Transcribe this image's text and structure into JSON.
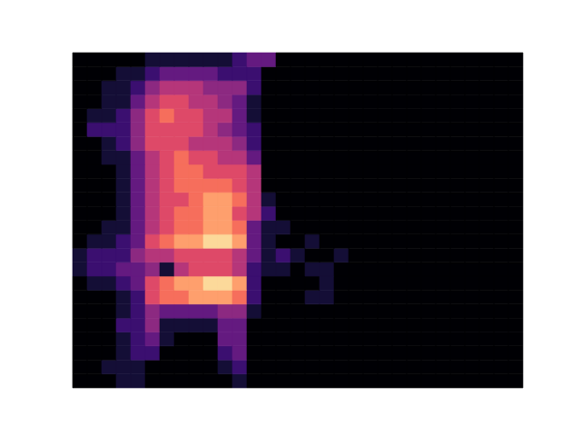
{
  "chart_data": {
    "type": "heatmap",
    "color": "magma",
    "tick_labels": false,
    "xlim": [
      0,
      31
    ],
    "ylim": [
      0,
      24
    ],
    "cells": [
      [
        0,
        0,
        0,
        1,
        1,
        0,
        0,
        0,
        0,
        0,
        0,
        1,
        0,
        0,
        0,
        0,
        0,
        0,
        0,
        0,
        0,
        0,
        0,
        0,
        0,
        0,
        0,
        0,
        0,
        0,
        0
      ],
      [
        0,
        0,
        1,
        1,
        1,
        0,
        0,
        0,
        0,
        0,
        1,
        2,
        0,
        0,
        0,
        0,
        0,
        0,
        0,
        0,
        0,
        0,
        0,
        0,
        0,
        0,
        0,
        0,
        0,
        0,
        0
      ],
      [
        0,
        0,
        0,
        1,
        2,
        2,
        0,
        0,
        0,
        0,
        2,
        3,
        0,
        0,
        0,
        0,
        0,
        0,
        0,
        0,
        0,
        0,
        0,
        0,
        0,
        0,
        0,
        0,
        0,
        0,
        0
      ],
      [
        0,
        0,
        0,
        1,
        2,
        3,
        1,
        0,
        0,
        0,
        3,
        3,
        0,
        0,
        0,
        0,
        0,
        0,
        0,
        0,
        0,
        0,
        0,
        0,
        0,
        0,
        0,
        0,
        0,
        0,
        0
      ],
      [
        0,
        0,
        0,
        2,
        2,
        4,
        1,
        1,
        1,
        1,
        3,
        3,
        0,
        0,
        0,
        0,
        0,
        0,
        0,
        0,
        0,
        0,
        0,
        0,
        0,
        0,
        0,
        0,
        0,
        0,
        0
      ],
      [
        0,
        0,
        0,
        1,
        2,
        4,
        3,
        3,
        3,
        3,
        4,
        4,
        1,
        0,
        0,
        0,
        0,
        0,
        0,
        0,
        0,
        0,
        0,
        0,
        0,
        0,
        0,
        0,
        0,
        0,
        0
      ],
      [
        0,
        0,
        0,
        1,
        2,
        6,
        7,
        7,
        8,
        8,
        8,
        7,
        2,
        0,
        0,
        0,
        1,
        1,
        0,
        0,
        0,
        0,
        0,
        0,
        0,
        0,
        0,
        0,
        0,
        0,
        0
      ],
      [
        0,
        1,
        1,
        2,
        3,
        6,
        7,
        8,
        8,
        9,
        9,
        8,
        2,
        0,
        0,
        0,
        0,
        1,
        0,
        0,
        0,
        0,
        0,
        0,
        0,
        0,
        0,
        0,
        0,
        0,
        0
      ],
      [
        1,
        2,
        2,
        3,
        3,
        4,
        1,
        5,
        6,
        6,
        6,
        5,
        2,
        1,
        1,
        0,
        1,
        1,
        0,
        0,
        0,
        0,
        0,
        0,
        0,
        0,
        0,
        0,
        0,
        0,
        0
      ],
      [
        1,
        2,
        2,
        2,
        4,
        5,
        5,
        6,
        6,
        6,
        6,
        5,
        3,
        1,
        2,
        1,
        0,
        0,
        1,
        0,
        0,
        0,
        0,
        0,
        0,
        0,
        0,
        0,
        0,
        0,
        0
      ],
      [
        0,
        1,
        1,
        2,
        3,
        6,
        7,
        8,
        8,
        9,
        9,
        8,
        3,
        1,
        0,
        0,
        1,
        0,
        0,
        0,
        0,
        0,
        0,
        0,
        0,
        0,
        0,
        0,
        0,
        0,
        0
      ],
      [
        0,
        0,
        1,
        1,
        3,
        5,
        6,
        7,
        7,
        8,
        8,
        7,
        3,
        1,
        1,
        0,
        0,
        0,
        0,
        0,
        0,
        0,
        0,
        0,
        0,
        0,
        0,
        0,
        0,
        0,
        0
      ],
      [
        0,
        0,
        0,
        1,
        3,
        5,
        6,
        7,
        7,
        8,
        8,
        6,
        5,
        2,
        0,
        0,
        0,
        0,
        0,
        0,
        0,
        0,
        0,
        0,
        0,
        0,
        0,
        0,
        0,
        0,
        0
      ],
      [
        0,
        0,
        0,
        1,
        3,
        5,
        6,
        6,
        7,
        8,
        8,
        7,
        5,
        1,
        0,
        0,
        0,
        0,
        0,
        0,
        0,
        0,
        0,
        0,
        0,
        0,
        0,
        0,
        0,
        0,
        0
      ],
      [
        0,
        0,
        0,
        1,
        3,
        5,
        6,
        7,
        7,
        7,
        7,
        6,
        5,
        0,
        0,
        0,
        0,
        0,
        0,
        0,
        0,
        0,
        0,
        0,
        0,
        0,
        0,
        0,
        0,
        0,
        0
      ],
      [
        0,
        0,
        0,
        1,
        3,
        5,
        6,
        7,
        7,
        6,
        6,
        6,
        5,
        0,
        0,
        0,
        0,
        0,
        0,
        0,
        0,
        0,
        0,
        0,
        0,
        0,
        0,
        0,
        0,
        0,
        0
      ],
      [
        0,
        0,
        1,
        1,
        3,
        5,
        6,
        7,
        6,
        6,
        5,
        5,
        3,
        0,
        0,
        0,
        0,
        0,
        0,
        0,
        0,
        0,
        0,
        0,
        0,
        0,
        0,
        0,
        0,
        0,
        0
      ],
      [
        0,
        0,
        1,
        2,
        4,
        6,
        6,
        6,
        5,
        5,
        5,
        4,
        2,
        0,
        0,
        0,
        0,
        0,
        0,
        0,
        0,
        0,
        0,
        0,
        0,
        0,
        0,
        0,
        0,
        0,
        0
      ],
      [
        0,
        2,
        2,
        2,
        4,
        6,
        6,
        6,
        6,
        5,
        4,
        3,
        2,
        0,
        0,
        0,
        0,
        0,
        0,
        0,
        0,
        0,
        0,
        0,
        0,
        0,
        0,
        0,
        0,
        0,
        0
      ],
      [
        0,
        1,
        1,
        2,
        4,
        6,
        7,
        6,
        6,
        5,
        5,
        3,
        1,
        0,
        0,
        0,
        0,
        0,
        0,
        0,
        0,
        0,
        0,
        0,
        0,
        0,
        0,
        0,
        0,
        0,
        0
      ],
      [
        0,
        0,
        1,
        1,
        3,
        5,
        6,
        6,
        5,
        5,
        4,
        3,
        1,
        0,
        0,
        0,
        0,
        0,
        0,
        0,
        0,
        0,
        0,
        0,
        0,
        0,
        0,
        0,
        0,
        0,
        0
      ],
      [
        0,
        0,
        1,
        1,
        2,
        4,
        5,
        5,
        5,
        4,
        4,
        4,
        2,
        0,
        0,
        0,
        0,
        0,
        0,
        0,
        0,
        0,
        0,
        0,
        0,
        0,
        0,
        0,
        0,
        0,
        0
      ],
      [
        0,
        0,
        0,
        1,
        1,
        2,
        3,
        3,
        3,
        3,
        2,
        2,
        2,
        0,
        0,
        0,
        0,
        0,
        0,
        0,
        0,
        0,
        0,
        0,
        0,
        0,
        0,
        0,
        0,
        0,
        0
      ],
      [
        0,
        0,
        0,
        0,
        0,
        1,
        1,
        1,
        1,
        1,
        1,
        2,
        3,
        3,
        0,
        0,
        0,
        0,
        0,
        0,
        0,
        0,
        0,
        0,
        0,
        0,
        0,
        0,
        0,
        0,
        0
      ]
    ]
  }
}
